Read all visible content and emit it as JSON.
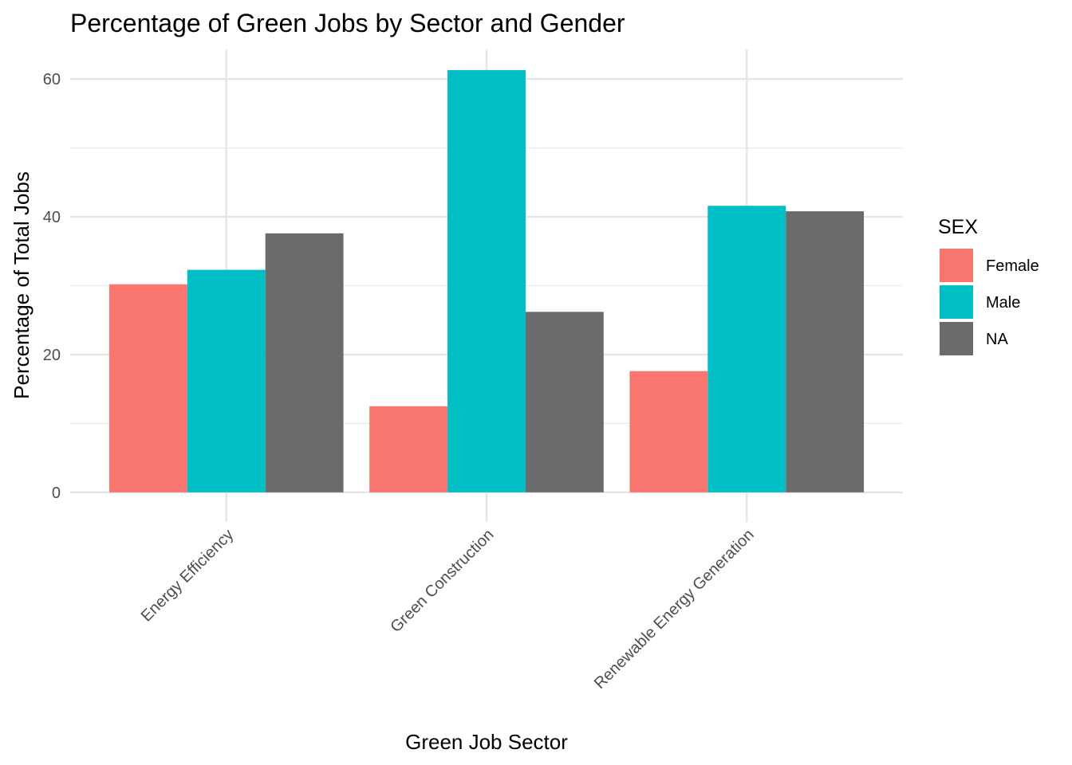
{
  "chart_data": {
    "type": "bar",
    "title": "Percentage of Green Jobs by Sector and Gender",
    "xlabel": "Green Job Sector",
    "ylabel": "Percentage of Total Jobs",
    "categories": [
      "Energy Efficiency",
      "Green Construction",
      "Renewable Energy Generation"
    ],
    "series": [
      {
        "name": "Female",
        "color": "#F8766D",
        "values": [
          30.2,
          12.5,
          17.6
        ]
      },
      {
        "name": "Male",
        "color": "#00BFC4",
        "values": [
          32.3,
          61.3,
          41.6
        ]
      },
      {
        "name": "NA",
        "color": "#6B6B6B",
        "values": [
          37.6,
          26.2,
          40.8
        ]
      }
    ],
    "ylim": [
      -4.3,
      64.3
    ],
    "yticks": [
      0,
      20,
      40,
      60
    ],
    "ytick_labels": [
      "0",
      "20",
      "40",
      "60"
    ],
    "grid": true,
    "legend": {
      "title": "SEX",
      "position": "right"
    }
  }
}
